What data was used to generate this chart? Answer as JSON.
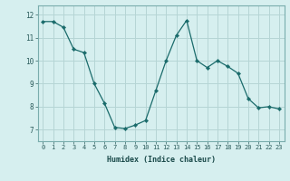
{
  "x": [
    0,
    1,
    2,
    3,
    4,
    5,
    6,
    7,
    8,
    9,
    10,
    11,
    12,
    13,
    14,
    15,
    16,
    17,
    18,
    19,
    20,
    21,
    22,
    23
  ],
  "y": [
    11.7,
    11.7,
    11.45,
    10.5,
    10.35,
    9.0,
    8.15,
    7.1,
    7.05,
    7.2,
    7.4,
    8.7,
    10.0,
    11.1,
    11.75,
    10.0,
    9.7,
    10.0,
    9.75,
    9.45,
    8.35,
    7.95,
    8.0,
    7.9
  ],
  "xlabel": "Humidex (Indice chaleur)",
  "bg_color": "#d6efef",
  "grid_color": "#b5d5d5",
  "line_color": "#1a6b6b",
  "marker_color": "#1a6b6b",
  "ylim_min": 6.5,
  "ylim_max": 12.4,
  "yticks": [
    7,
    8,
    9,
    10,
    11,
    12
  ],
  "xticks": [
    0,
    1,
    2,
    3,
    4,
    5,
    6,
    7,
    8,
    9,
    10,
    11,
    12,
    13,
    14,
    15,
    16,
    17,
    18,
    19,
    20,
    21,
    22,
    23
  ]
}
